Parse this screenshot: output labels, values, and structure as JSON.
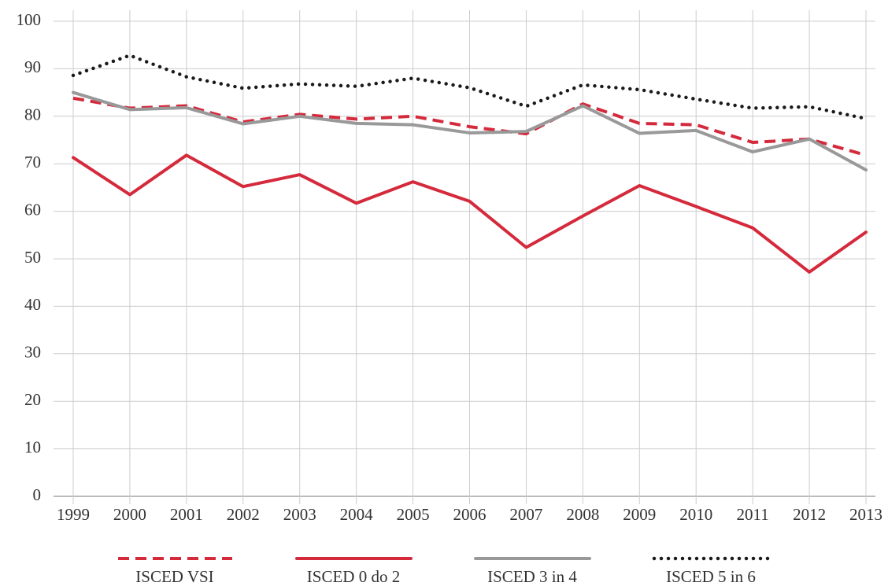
{
  "chart_data": {
    "type": "line",
    "categories": [
      "1999",
      "2000",
      "2001",
      "2002",
      "2003",
      "2004",
      "2005",
      "2006",
      "2007",
      "2008",
      "2009",
      "2010",
      "2011",
      "2012",
      "2013"
    ],
    "ylim": [
      0,
      100
    ],
    "yticks": [
      0,
      10,
      20,
      30,
      40,
      50,
      60,
      70,
      80,
      90,
      100
    ],
    "grid": true,
    "legend": "bottom",
    "series": [
      {
        "name": "ISCED VSI",
        "color": "#d42a3c",
        "style": "dashed",
        "values": [
          83.8,
          81.7,
          82.2,
          78.8,
          80.4,
          79.4,
          80.0,
          77.8,
          76.3,
          82.6,
          78.5,
          78.2,
          74.5,
          75.2,
          71.8
        ]
      },
      {
        "name": "ISCED 0 do 2",
        "color": "#d42a3c",
        "style": "solid",
        "values": [
          71.3,
          63.5,
          71.8,
          65.2,
          67.7,
          61.7,
          66.2,
          62.1,
          52.4,
          59.0,
          65.4,
          61.0,
          56.5,
          47.2,
          55.6
        ]
      },
      {
        "name": "ISCED 3 in 4",
        "color": "#999999",
        "style": "solid",
        "values": [
          85.0,
          81.4,
          81.8,
          78.4,
          80.0,
          78.5,
          78.2,
          76.5,
          76.8,
          82.2,
          76.4,
          77.0,
          72.5,
          75.2,
          68.7
        ]
      },
      {
        "name": "ISCED 5 in 6",
        "color": "#1a1a1a",
        "style": "dotted",
        "values": [
          88.6,
          92.8,
          88.3,
          85.9,
          86.8,
          86.3,
          88.0,
          86.0,
          82.1,
          86.6,
          85.6,
          83.6,
          81.7,
          82.0,
          79.5
        ]
      }
    ]
  }
}
